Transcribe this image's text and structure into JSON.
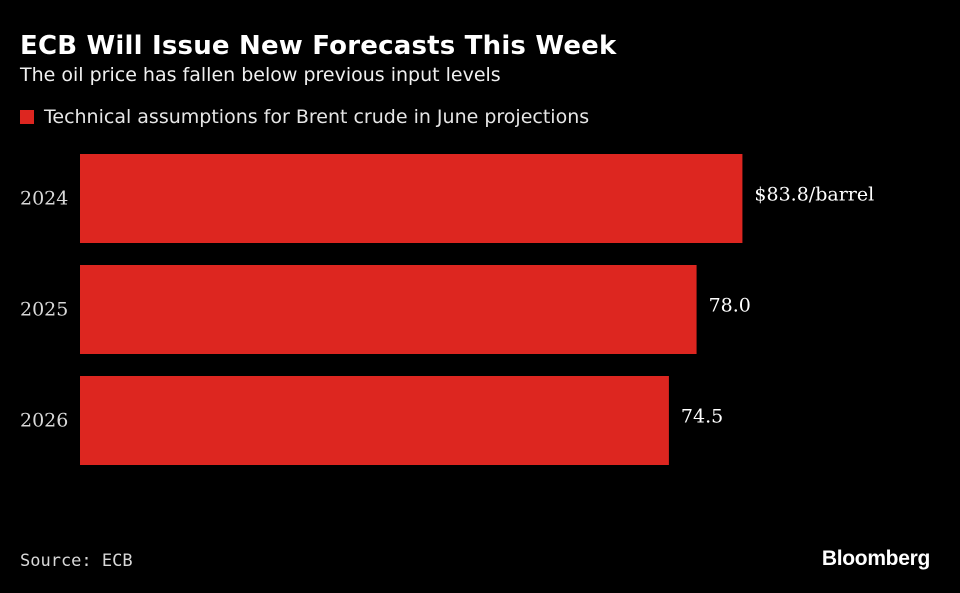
{
  "chart_data": {
    "type": "bar",
    "orientation": "horizontal",
    "title": "ECB Will Issue New Forecasts This Week",
    "subtitle": "The oil price has fallen below previous input levels",
    "categories": [
      "2024",
      "2025",
      "2026"
    ],
    "series": [
      {
        "name": "Technical assumptions for Brent crude in June projections",
        "values": [
          83.8,
          78.0,
          74.5
        ],
        "value_labels": [
          "$83.8/barrel",
          "78.0",
          "74.5"
        ],
        "color": "#dd2620"
      }
    ],
    "xlim": [
      0,
      84
    ],
    "grid": false,
    "legend_position": "top-left"
  },
  "footer": {
    "source": "Source: ECB",
    "logo": "Bloomberg"
  }
}
